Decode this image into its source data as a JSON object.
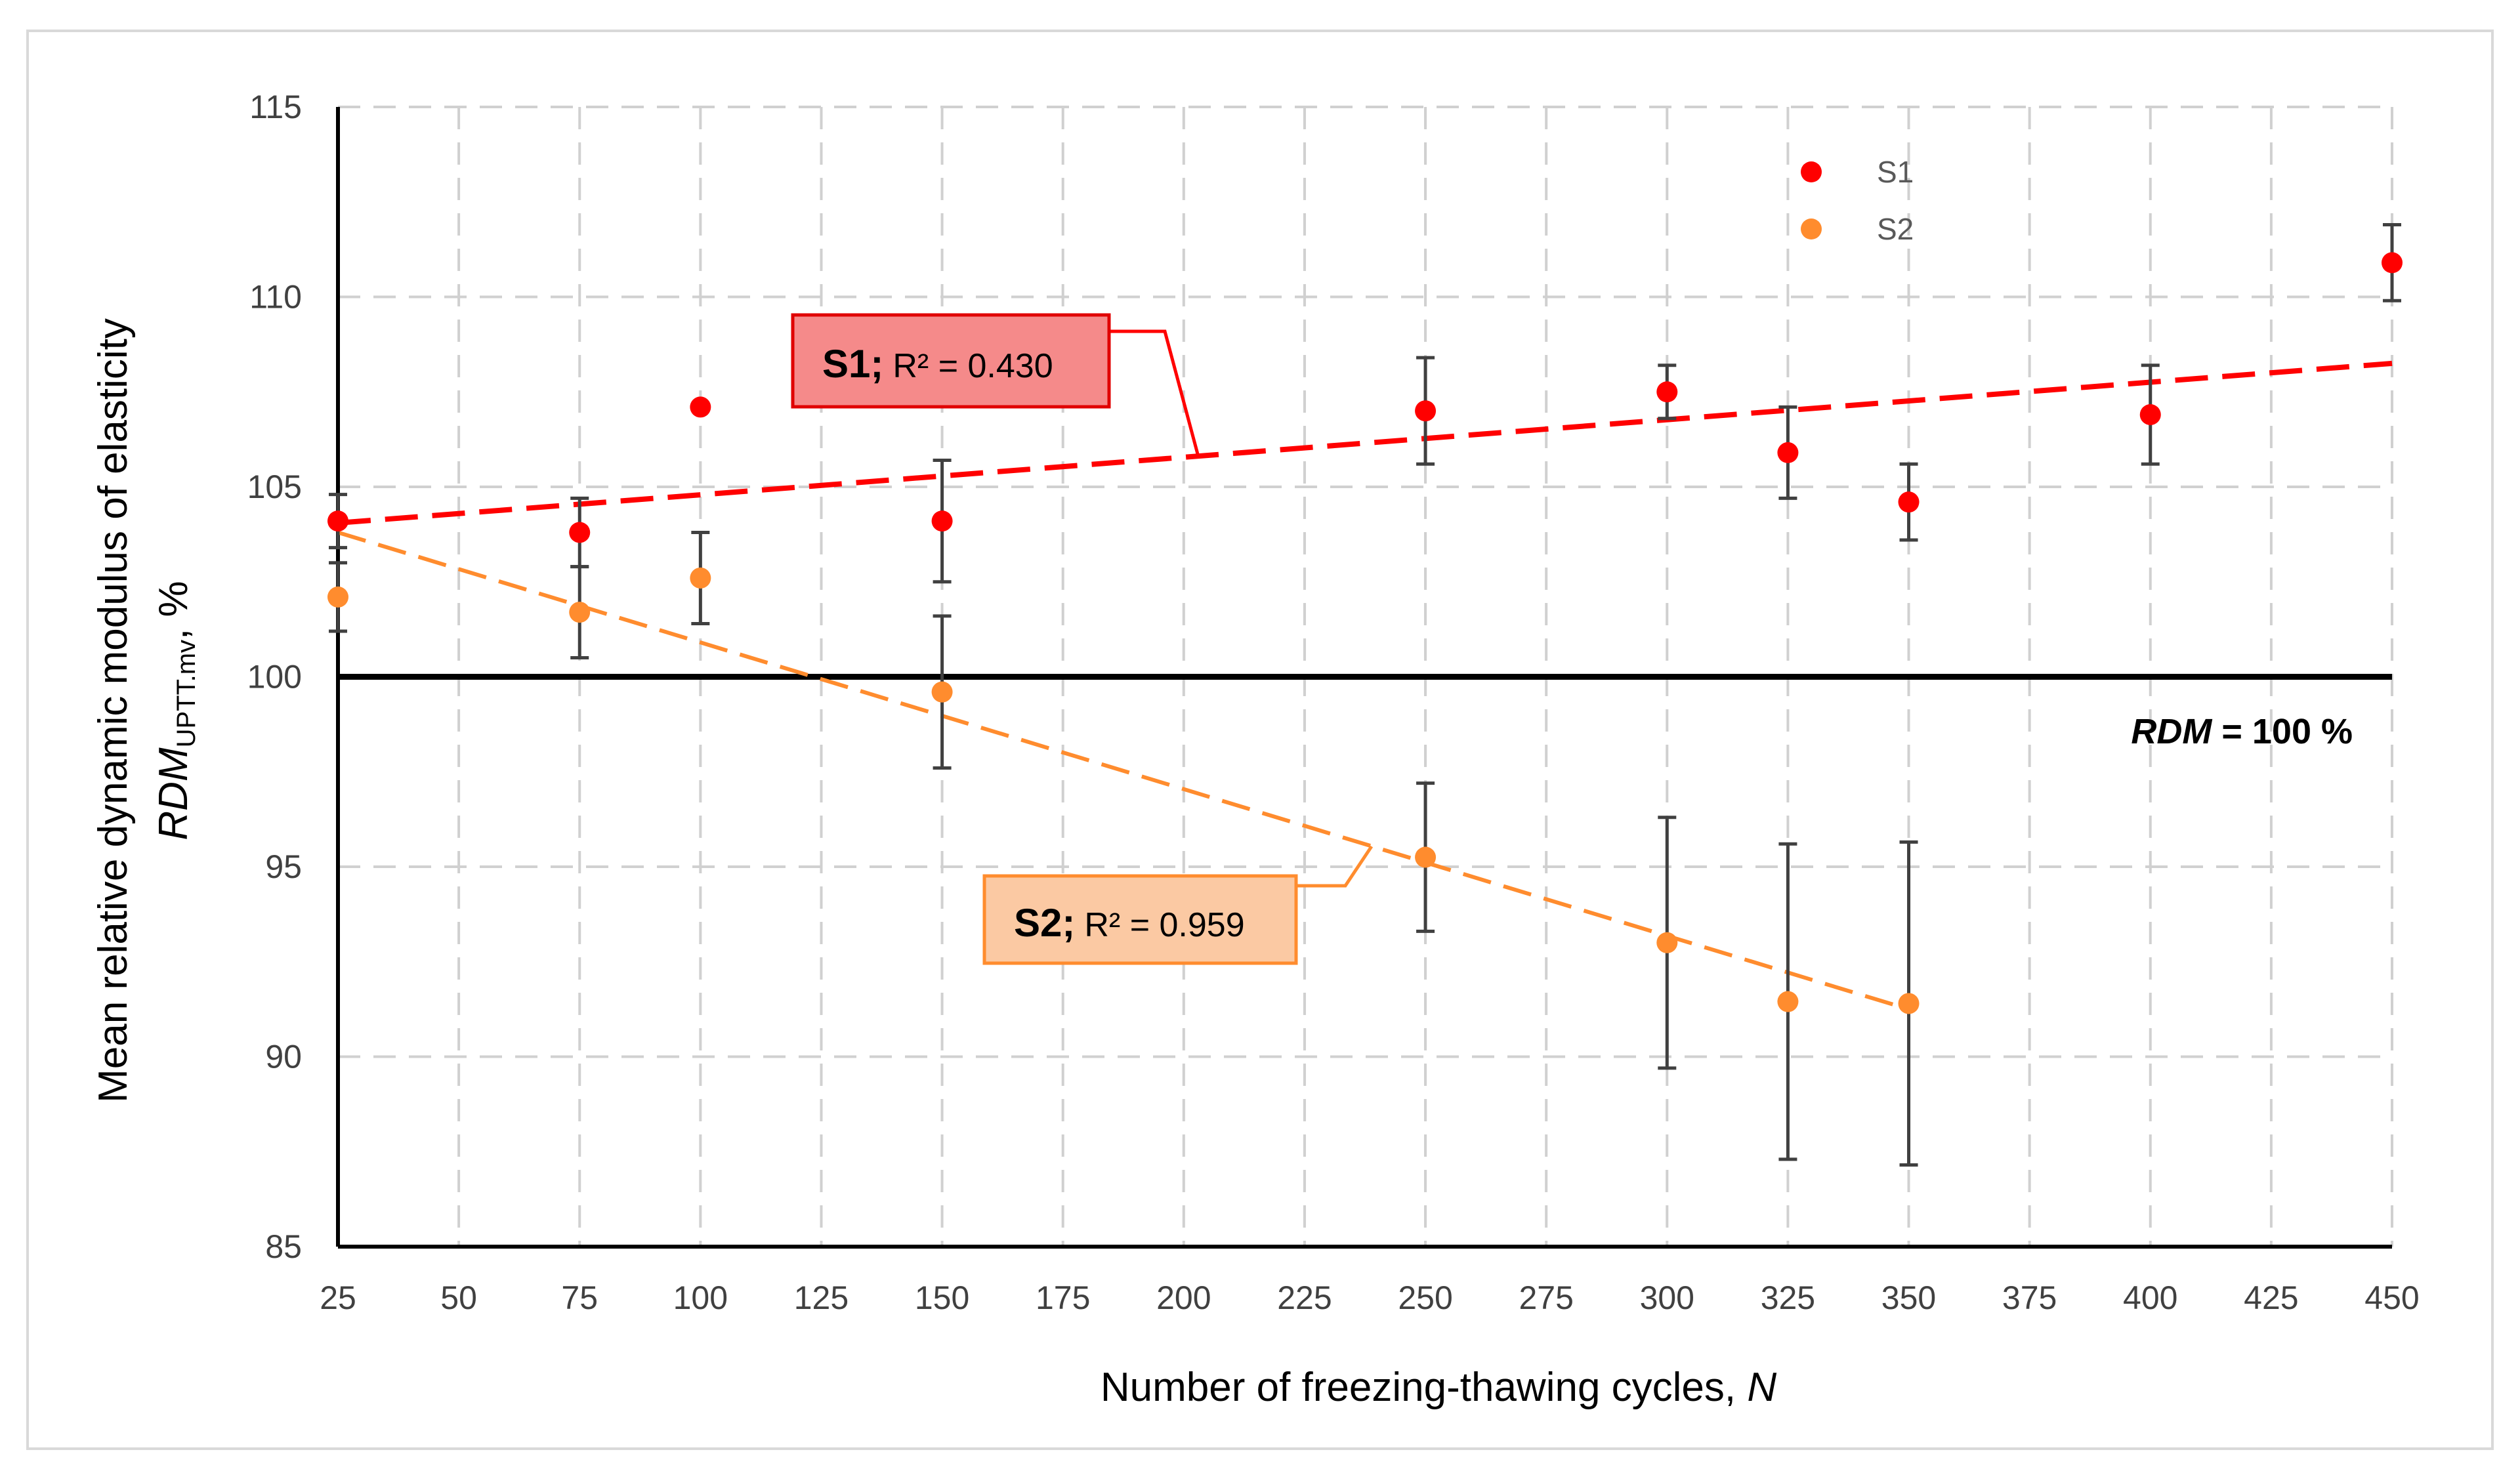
{
  "chart_data": {
    "type": "scatter",
    "title": "",
    "xlabel": "Number of freezing-thawing cycles, ",
    "xlabel_var": "N",
    "ylabel_line1": "Mean relative dynamic modulus of elasticity",
    "ylabel_line2_var": "RDM",
    "ylabel_line2_sub": "UPTT.mv",
    "ylabel_line2_unit": ", %",
    "xlim": [
      25,
      450
    ],
    "ylim": [
      85,
      115
    ],
    "x_ticks": [
      "25",
      "50",
      "75",
      "100",
      "125",
      "150",
      "175",
      "200",
      "225",
      "250",
      "275",
      "300",
      "325",
      "350",
      "375",
      "400",
      "425",
      "450"
    ],
    "y_ticks": [
      "85",
      "90",
      "95",
      "100",
      "105",
      "110",
      "115"
    ],
    "grid": true,
    "legend_position": "top",
    "reference_line": {
      "y": 100,
      "label_var": "RDM",
      "label_rest": " = 100 %"
    },
    "series": [
      {
        "name": "S1",
        "color": "#ff0000",
        "x": [
          25,
          75,
          100,
          150,
          250,
          300,
          325,
          350,
          400,
          450
        ],
        "y": [
          104.1,
          103.8,
          107.1,
          104.1,
          107.0,
          107.5,
          105.9,
          104.6,
          106.9,
          110.9
        ],
        "err": [
          0.7,
          0.9,
          null,
          1.6,
          1.4,
          0.7,
          1.2,
          1.0,
          1.3,
          1.0
        ],
        "trend": {
          "x0": 25,
          "y0": 104.05,
          "x1": 450,
          "y1": 108.25,
          "r2_label": "R² = 0.430"
        }
      },
      {
        "name": "S2",
        "color": "#ff8c2e",
        "x": [
          25,
          75,
          100,
          150,
          250,
          300,
          325,
          350
        ],
        "y": [
          102.1,
          101.7,
          102.6,
          99.6,
          95.25,
          93.0,
          91.45,
          91.4
        ],
        "err": [
          0.9,
          1.2,
          1.2,
          2.0,
          1.95,
          3.3,
          4.15,
          4.25
        ],
        "trend": {
          "x0": 25,
          "y0": 103.8,
          "x1": 350,
          "y1": 91.25,
          "r2_label": "R² = 0.959"
        }
      }
    ]
  }
}
